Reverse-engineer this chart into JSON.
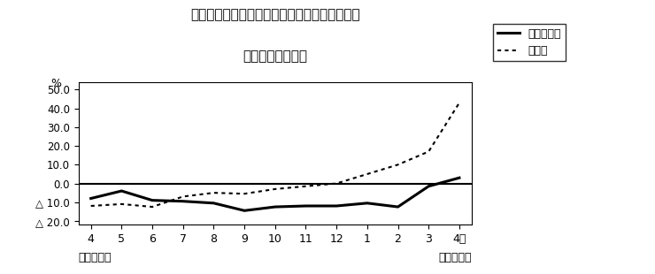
{
  "title_line1": "第２図　所定外労働時間　対前年同月比の推移",
  "title_line2": "（規模５人以上）",
  "xlabel_bottom_left": "平成２３年",
  "xlabel_bottom_right": "平成２４年",
  "x_labels": [
    "4",
    "5",
    "6",
    "7",
    "8",
    "9",
    "10",
    "11",
    "12",
    "1",
    "2",
    "3",
    "4月"
  ],
  "ylim": [
    -22.0,
    54.0
  ],
  "yticks": [
    -20.0,
    -10.0,
    0.0,
    10.0,
    20.0,
    30.0,
    40.0,
    50.0
  ],
  "ylabel_symbol": "%",
  "legend_line1": "調査産業計",
  "legend_line2": "製造業",
  "series_chosa": [
    -8.0,
    -4.0,
    -9.0,
    -9.5,
    -10.5,
    -14.5,
    -12.5,
    -12.0,
    -12.0,
    -10.5,
    -12.5,
    -1.5,
    3.0
  ],
  "series_seizou": [
    -12.0,
    -11.0,
    -12.5,
    -7.0,
    -5.0,
    -5.5,
    -3.0,
    -1.5,
    0.0,
    5.0,
    10.0,
    17.0,
    43.0
  ],
  "bg_color": "#ffffff",
  "line_color": "#000000"
}
